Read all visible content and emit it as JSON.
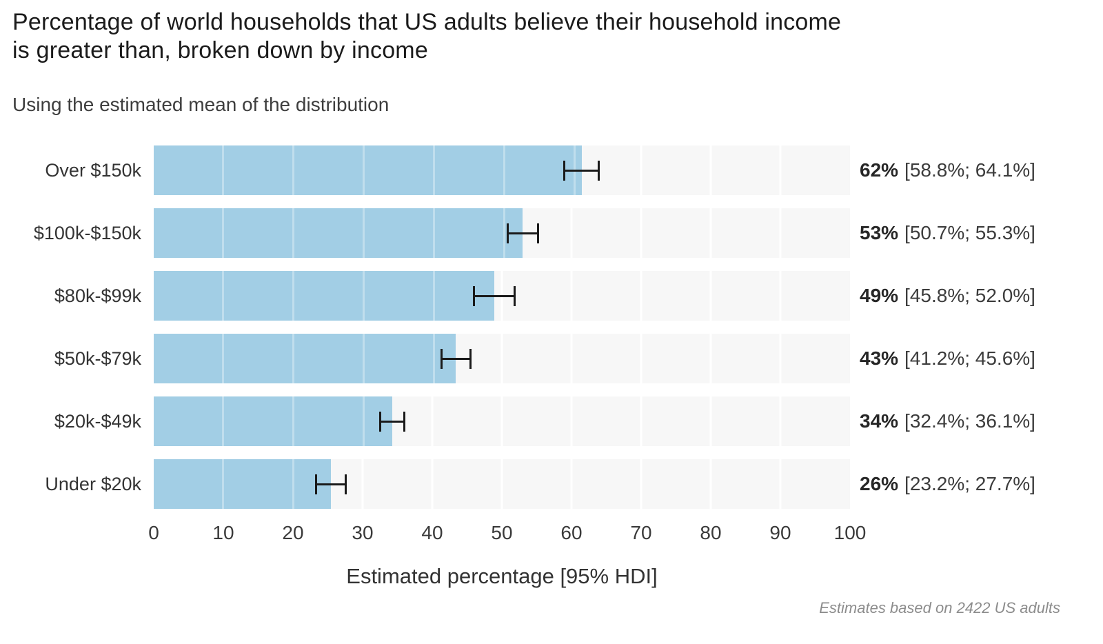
{
  "title": {
    "line1": "Percentage of world households that US adults believe their household income",
    "line2": "is greater than, broken down by income"
  },
  "subtitle": "Using the estimated mean of the distribution",
  "footnote": "Estimates based on 2422 US adults",
  "colors": {
    "bar": "#a2cee5",
    "track": "#f7f7f7",
    "error_bar": "#1a1a1a",
    "title_text": "#1b1b1b",
    "footnote_text": "#8c8c8c"
  },
  "chart_data": {
    "type": "bar",
    "orientation": "horizontal",
    "title": "Percentage of world households that US adults believe their household income is greater than, broken down by income",
    "subtitle": "Using the estimated mean of the distribution",
    "xlabel": "Estimated percentage [95% HDI]",
    "ylabel": "",
    "xlim": [
      0,
      100
    ],
    "grid": "vertical, white on light-gray tracks",
    "legend": "none",
    "categories": [
      "Over $150k",
      "$100k-$150k",
      "$80k-$99k",
      "$50k-$79k",
      "$20k-$49k",
      "Under $20k"
    ],
    "values": [
      62,
      53,
      49,
      43,
      34,
      26
    ],
    "x_ticks": [
      "0",
      "10",
      "20",
      "30",
      "40",
      "50",
      "60",
      "70",
      "80",
      "90",
      "100"
    ],
    "rows": [
      {
        "label": "Over $150k",
        "mean": 62,
        "low": 58.8,
        "high": 64.1,
        "pct_label": "62%",
        "hdi_label": "[58.8%; 64.1%]"
      },
      {
        "label": "$100k-$150k",
        "mean": 53,
        "low": 50.7,
        "high": 55.3,
        "pct_label": "53%",
        "hdi_label": "[50.7%; 55.3%]"
      },
      {
        "label": "$80k-$99k",
        "mean": 49,
        "low": 45.8,
        "high": 52.0,
        "pct_label": "49%",
        "hdi_label": "[45.8%; 52.0%]"
      },
      {
        "label": "$50k-$79k",
        "mean": 43,
        "low": 41.2,
        "high": 45.6,
        "pct_label": "43%",
        "hdi_label": "[41.2%; 45.6%]"
      },
      {
        "label": "$20k-$49k",
        "mean": 34,
        "low": 32.4,
        "high": 36.1,
        "pct_label": "34%",
        "hdi_label": "[32.4%; 36.1%]"
      },
      {
        "label": "Under $20k",
        "mean": 26,
        "low": 23.2,
        "high": 27.7,
        "pct_label": "26%",
        "hdi_label": "[23.2%; 27.7%]"
      }
    ]
  }
}
